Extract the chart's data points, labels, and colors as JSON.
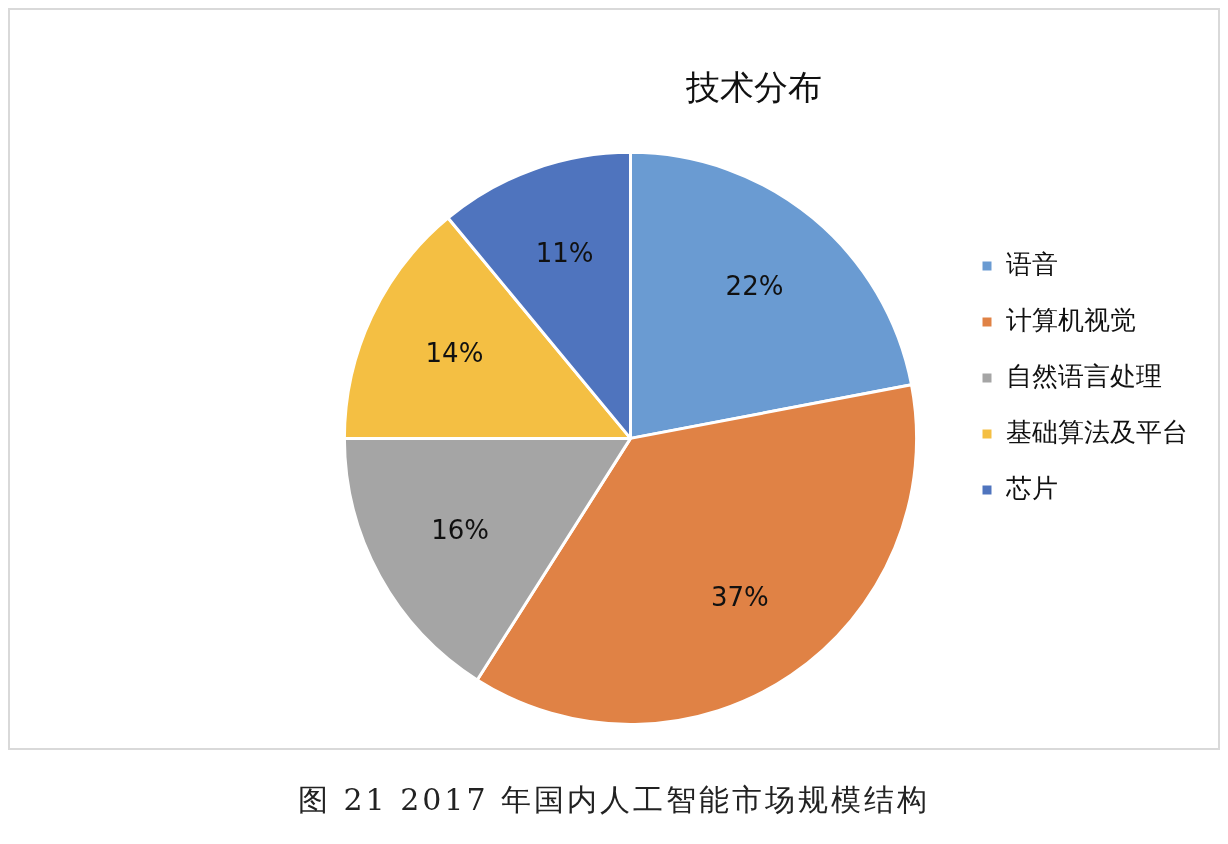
{
  "chart_data": {
    "type": "pie",
    "title": "技术分布",
    "categories": [
      "语音",
      "计算机视觉",
      "自然语言处理",
      "基础算法及平台",
      "芯片"
    ],
    "values": [
      22,
      37,
      16,
      14,
      11
    ],
    "value_labels": [
      "22%",
      "37%",
      "16%",
      "14%",
      "11%"
    ],
    "colors": [
      "#6a9bd2",
      "#e08245",
      "#a5a5a5",
      "#f4bf43",
      "#4f74be"
    ],
    "legend": "right",
    "annotations": [
      "图 21 2017 年国内人工智能市场规模结构"
    ]
  }
}
